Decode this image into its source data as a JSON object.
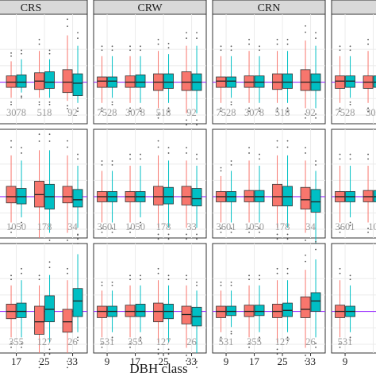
{
  "chart_data": {
    "type": "box",
    "xlabel": "DBH class",
    "ylabel": "",
    "x_tick_labels": [
      "9",
      "17",
      "25",
      "33"
    ],
    "series": [
      {
        "name": "",
        "color": "#f8766d"
      },
      {
        "name": "",
        "color": "#00bfc4"
      }
    ],
    "reference_line": {
      "color": "#9b30ff",
      "y": 0
    },
    "ylim": [
      -1,
      1
    ],
    "grid": true,
    "panel_titles": [
      "CRS",
      "CRW",
      "CRN",
      ""
    ],
    "rows": [
      {
        "counts": [
          [
            "",
            "3078",
            "518",
            "92"
          ],
          [
            "7528",
            "3078",
            "518",
            "92"
          ],
          [
            "7528",
            "3078",
            "518",
            "92"
          ],
          [
            "7528",
            "307",
            "",
            ""
          ]
        ],
        "boxes": [
          [
            [
              [
                -0.06,
                -0.02,
                0.01,
                0.05,
                0.09
              ],
              [
                -0.07,
                -0.03,
                0.01,
                0.05,
                0.1
              ]
            ],
            [
              [
                -0.15,
                -0.05,
                0.0,
                0.06,
                0.2
              ],
              [
                -0.1,
                -0.05,
                0.0,
                0.07,
                0.22
              ]
            ],
            [
              [
                -0.15,
                -0.07,
                0.01,
                0.09,
                0.3
              ],
              [
                -0.15,
                -0.06,
                0.0,
                0.1,
                0.22
              ]
            ],
            [
              [
                -0.18,
                -0.1,
                0.0,
                0.12,
                0.45
              ],
              [
                -0.2,
                -0.13,
                -0.01,
                0.08,
                0.35
              ]
            ]
          ],
          [
            [
              [
                -0.2,
                -0.05,
                0.01,
                0.05,
                0.25
              ],
              [
                -0.15,
                -0.05,
                0.01,
                0.05,
                0.25
              ]
            ],
            [
              [
                -0.2,
                -0.05,
                0.0,
                0.06,
                0.25
              ],
              [
                -0.2,
                -0.05,
                0.0,
                0.07,
                0.25
              ]
            ],
            [
              [
                -0.25,
                -0.08,
                0.0,
                0.08,
                0.3
              ],
              [
                -0.2,
                -0.06,
                0.0,
                0.08,
                0.27
              ]
            ],
            [
              [
                -0.3,
                -0.08,
                0.0,
                0.1,
                0.35
              ],
              [
                -0.3,
                -0.08,
                0.0,
                0.08,
                0.35
              ]
            ]
          ],
          [
            [
              [
                -0.2,
                -0.05,
                0.01,
                0.05,
                0.25
              ],
              [
                -0.15,
                -0.05,
                0.01,
                0.05,
                0.25
              ]
            ],
            [
              [
                -0.2,
                -0.05,
                0.0,
                0.06,
                0.3
              ],
              [
                -0.2,
                -0.05,
                0.0,
                0.06,
                0.25
              ]
            ],
            [
              [
                -0.2,
                -0.07,
                0.0,
                0.08,
                0.3
              ],
              [
                -0.2,
                -0.06,
                0.0,
                0.08,
                0.3
              ]
            ],
            [
              [
                -0.25,
                -0.08,
                0.0,
                0.12,
                0.4
              ],
              [
                -0.25,
                -0.08,
                0.0,
                0.08,
                0.35
              ]
            ]
          ],
          [
            [
              [
                -0.2,
                -0.06,
                0.01,
                0.06,
                0.25
              ],
              [
                -0.15,
                -0.05,
                0.01,
                0.06,
                0.25
              ]
            ],
            [
              [
                -0.2,
                -0.06,
                0.0,
                0.06,
                0.3
              ],
              [
                -0.2,
                -0.05,
                0.0,
                0.06,
                0.25
              ]
            ],
            [
              [
                0,
                0,
                0,
                0,
                0
              ],
              [
                0,
                0,
                0,
                0,
                0
              ]
            ],
            [
              [
                0,
                0,
                0,
                0,
                0
              ],
              [
                0,
                0,
                0,
                0,
                0
              ]
            ]
          ]
        ]
      },
      {
        "counts": [
          [
            "",
            "1050",
            "178",
            "34"
          ],
          [
            "3601",
            "1050",
            "178",
            "33"
          ],
          [
            "3601",
            "1050",
            "178",
            "34"
          ],
          [
            "3601",
            "10",
            "",
            ""
          ]
        ],
        "boxes": [
          [
            [
              [
                -0.1,
                -0.04,
                0.0,
                0.04,
                0.15
              ],
              [
                -0.1,
                -0.05,
                0.0,
                0.05,
                0.15
              ]
            ],
            [
              [
                -0.25,
                -0.06,
                0.0,
                0.1,
                0.4
              ],
              [
                -0.2,
                -0.07,
                0.0,
                0.08,
                0.35
              ]
            ],
            [
              [
                -0.4,
                -0.1,
                0.02,
                0.15,
                0.45
              ],
              [
                -0.35,
                -0.12,
                0.0,
                0.12,
                0.45
              ]
            ],
            [
              [
                -0.35,
                -0.06,
                0.0,
                0.1,
                0.4
              ],
              [
                -0.3,
                -0.1,
                -0.03,
                0.07,
                0.3
              ]
            ]
          ],
          [
            [
              [
                -0.25,
                -0.05,
                0.0,
                0.05,
                0.25
              ],
              [
                -0.25,
                -0.05,
                0.0,
                0.05,
                0.25
              ]
            ],
            [
              [
                -0.25,
                -0.05,
                0.0,
                0.05,
                0.3
              ],
              [
                -0.2,
                -0.05,
                0.0,
                0.05,
                0.3
              ]
            ],
            [
              [
                -0.3,
                -0.08,
                0.0,
                0.1,
                0.4
              ],
              [
                -0.3,
                -0.07,
                0.0,
                0.09,
                0.35
              ]
            ],
            [
              [
                -0.3,
                -0.08,
                0.0,
                0.1,
                0.35
              ],
              [
                -0.3,
                -0.09,
                -0.02,
                0.08,
                0.3
              ]
            ]
          ],
          [
            [
              [
                -0.25,
                -0.05,
                0.0,
                0.05,
                0.2
              ],
              [
                -0.25,
                -0.05,
                0.0,
                0.05,
                0.25
              ]
            ],
            [
              [
                -0.25,
                -0.05,
                0.0,
                0.06,
                0.35
              ],
              [
                -0.25,
                -0.05,
                0.0,
                0.06,
                0.3
              ]
            ],
            [
              [
                -0.3,
                -0.09,
                0.0,
                0.12,
                0.4
              ],
              [
                -0.3,
                -0.09,
                0.0,
                0.1,
                0.4
              ]
            ],
            [
              [
                -0.35,
                -0.12,
                -0.03,
                0.09,
                0.35
              ],
              [
                -0.45,
                -0.15,
                -0.05,
                0.07,
                0.25
              ]
            ]
          ],
          [
            [
              [
                -0.25,
                -0.05,
                0.0,
                0.05,
                0.3
              ],
              [
                -0.2,
                -0.05,
                0.0,
                0.05,
                0.3
              ]
            ],
            [
              [
                -0.25,
                -0.05,
                0.0,
                0.06,
                0.3
              ],
              [
                -0.2,
                -0.05,
                0.0,
                0.06,
                0.3
              ]
            ],
            [
              [
                0,
                0,
                0,
                0,
                0
              ],
              [
                0,
                0,
                0,
                0,
                0
              ]
            ],
            [
              [
                0,
                0,
                0,
                0,
                0
              ],
              [
                0,
                0,
                0,
                0,
                0
              ]
            ]
          ]
        ]
      },
      {
        "counts": [
          [
            "",
            "355",
            "127",
            "26"
          ],
          [
            "531",
            "355",
            "127",
            "26"
          ],
          [
            "531",
            "355",
            "127",
            "26"
          ],
          [
            "531",
            "",
            "",
            ""
          ]
        ],
        "boxes": [
          [
            [
              [
                -0.1,
                -0.05,
                0.0,
                0.05,
                0.15
              ],
              [
                -0.1,
                -0.05,
                0.0,
                0.05,
                0.15
              ]
            ],
            [
              [
                -0.25,
                -0.07,
                0.0,
                0.07,
                0.25
              ],
              [
                -0.25,
                -0.06,
                0.0,
                0.08,
                0.3
              ]
            ],
            [
              [
                -0.4,
                -0.22,
                -0.1,
                0.05,
                0.25
              ],
              [
                -0.3,
                -0.1,
                0.02,
                0.15,
                0.35
              ]
            ],
            [
              [
                -0.4,
                -0.2,
                -0.1,
                0.02,
                0.3
              ],
              [
                -0.2,
                -0.05,
                0.1,
                0.22,
                0.55
              ]
            ]
          ],
          [
            [
              [
                -0.25,
                -0.06,
                0.0,
                0.05,
                0.2
              ],
              [
                -0.2,
                -0.05,
                0.0,
                0.05,
                0.2
              ]
            ],
            [
              [
                -0.25,
                -0.05,
                0.0,
                0.06,
                0.25
              ],
              [
                -0.2,
                -0.05,
                0.0,
                0.07,
                0.25
              ]
            ],
            [
              [
                -0.3,
                -0.1,
                0.0,
                0.08,
                0.3
              ],
              [
                -0.3,
                -0.07,
                0.0,
                0.07,
                0.25
              ]
            ],
            [
              [
                -0.35,
                -0.12,
                -0.03,
                0.05,
                0.25
              ],
              [
                -0.4,
                -0.14,
                -0.05,
                0.04,
                0.2
              ]
            ]
          ],
          [
            [
              [
                -0.2,
                -0.06,
                0.0,
                0.05,
                0.2
              ],
              [
                -0.15,
                -0.04,
                0.0,
                0.05,
                0.2
              ]
            ],
            [
              [
                -0.25,
                -0.05,
                0.0,
                0.06,
                0.25
              ],
              [
                -0.2,
                -0.04,
                0.0,
                0.06,
                0.25
              ]
            ],
            [
              [
                -0.3,
                -0.06,
                0.0,
                0.07,
                0.3
              ],
              [
                -0.2,
                -0.05,
                0.01,
                0.08,
                0.3
              ]
            ],
            [
              [
                -0.35,
                -0.06,
                0.02,
                0.14,
                0.4
              ],
              [
                -0.25,
                0.0,
                0.1,
                0.18,
                0.5
              ]
            ]
          ],
          [
            [
              [
                -0.25,
                -0.06,
                0.0,
                0.06,
                0.3
              ],
              [
                -0.2,
                -0.05,
                0.0,
                0.05,
                0.25
              ]
            ],
            [
              [
                -0.25,
                -0.06,
                0.0,
                0.06,
                0.3
              ],
              [
                -0.2,
                -0.05,
                0.0,
                0.05,
                0.25
              ]
            ],
            [
              [
                0,
                0,
                0,
                0,
                0
              ],
              [
                0,
                0,
                0,
                0,
                0
              ]
            ],
            [
              [
                0,
                0,
                0,
                0,
                0
              ],
              [
                0,
                0,
                0,
                0,
                0
              ]
            ]
          ]
        ]
      }
    ]
  }
}
